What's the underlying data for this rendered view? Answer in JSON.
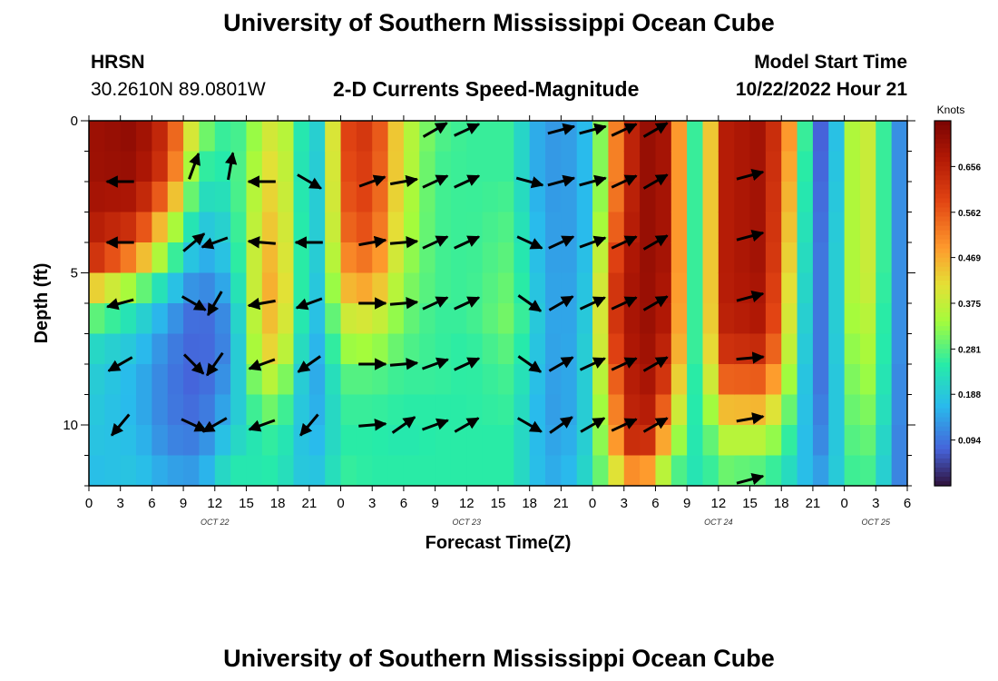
{
  "page": {
    "title": "University of Southern Mississippi Ocean Cube",
    "footer_title": "University of Southern Mississippi Ocean Cube",
    "station_name": "HRSN",
    "station_coords": "30.2610N  89.0801W",
    "chart_title": "2-D Currents Speed-Magnitude",
    "model_start_label": "Model Start Time",
    "model_start_value": "10/22/2022 Hour 21"
  },
  "chart_data": {
    "type": "heatmap",
    "title": "2-D Currents Speed-Magnitude",
    "xlabel": "Forecast Time(Z)",
    "ylabel": "Depth (ft)",
    "colorbar_label": "Knots",
    "colorbar_ticks": [
      "0.656",
      "0.562",
      "0.469",
      "0.375",
      "0.281",
      "0.188",
      "0.094"
    ],
    "colorbar_values": [
      0.656,
      0.562,
      0.469,
      0.375,
      0.281,
      0.188,
      0.094
    ],
    "color_range": [
      0.0,
      0.75
    ],
    "x_tick_labels": [
      "0",
      "3",
      "6",
      "9",
      "12",
      "15",
      "18",
      "21",
      "0",
      "3",
      "6",
      "9",
      "12",
      "15",
      "18",
      "21",
      "0",
      "3",
      "6",
      "9",
      "12",
      "15",
      "18",
      "21",
      "0",
      "3",
      "6"
    ],
    "y_tick_labels": [
      "0",
      "5",
      "10"
    ],
    "y_tick_values": [
      0,
      5,
      10
    ],
    "ylim": [
      0,
      12
    ],
    "xlim_hours": [
      0,
      78
    ],
    "date_labels": [
      {
        "text": "OCT 22",
        "hour": 12
      },
      {
        "text": "OCT 23",
        "hour": 36
      },
      {
        "text": "OCT 24",
        "hour": 60
      },
      {
        "text": "OCT 25",
        "hour": 75
      }
    ],
    "time_hours": [
      0,
      1.5,
      3,
      4.5,
      6,
      7.5,
      9,
      10.5,
      12,
      13.5,
      15,
      16.5,
      18,
      19.5,
      21,
      22.5,
      24,
      25.5,
      27,
      28.5,
      30,
      31.5,
      33,
      34.5,
      36,
      37.5,
      39,
      40.5,
      42,
      43.5,
      45,
      46.5,
      48,
      49.5,
      51,
      52.5,
      54,
      55.5,
      57,
      58.5,
      60,
      61.5,
      63,
      64.5,
      66,
      67.5,
      69,
      70.5,
      72,
      73.5,
      75,
      76.5
    ],
    "depth_ft": [
      0,
      1,
      2,
      3,
      4,
      5,
      6,
      7,
      8,
      9,
      10,
      11
    ],
    "speed_profiles": [
      {
        "hour": 0,
        "values": [
          0.7,
          0.7,
          0.69,
          0.67,
          0.64,
          0.45,
          0.3,
          0.22,
          0.2,
          0.19,
          0.18,
          0.17
        ]
      },
      {
        "hour": 4.5,
        "values": [
          0.72,
          0.71,
          0.68,
          0.62,
          0.5,
          0.32,
          0.22,
          0.18,
          0.16,
          0.16,
          0.17,
          0.18
        ]
      },
      {
        "hour": 7.5,
        "values": [
          0.62,
          0.6,
          0.52,
          0.4,
          0.3,
          0.2,
          0.14,
          0.11,
          0.1,
          0.1,
          0.11,
          0.14
        ]
      },
      {
        "hour": 10.5,
        "values": [
          0.32,
          0.26,
          0.22,
          0.18,
          0.14,
          0.1,
          0.07,
          0.07,
          0.07,
          0.08,
          0.1,
          0.13
        ]
      },
      {
        "hour": 13.5,
        "values": [
          0.24,
          0.24,
          0.23,
          0.21,
          0.19,
          0.16,
          0.13,
          0.12,
          0.14,
          0.16,
          0.2,
          0.24
        ]
      },
      {
        "hour": 16.5,
        "values": [
          0.36,
          0.38,
          0.4,
          0.42,
          0.44,
          0.45,
          0.44,
          0.42,
          0.36,
          0.3,
          0.25,
          0.24
        ]
      },
      {
        "hour": 18,
        "values": [
          0.42,
          0.44,
          0.45,
          0.46,
          0.47,
          0.48,
          0.46,
          0.43,
          0.36,
          0.3,
          0.26,
          0.25
        ]
      },
      {
        "hour": 19.5,
        "values": [
          0.3,
          0.3,
          0.31,
          0.32,
          0.33,
          0.34,
          0.33,
          0.3,
          0.26,
          0.23,
          0.21,
          0.2
        ]
      },
      {
        "hour": 21,
        "values": [
          0.18,
          0.17,
          0.17,
          0.17,
          0.17,
          0.16,
          0.15,
          0.14,
          0.13,
          0.14,
          0.15,
          0.17
        ]
      },
      {
        "hour": 22.5,
        "values": [
          0.22,
          0.22,
          0.22,
          0.22,
          0.22,
          0.21,
          0.2,
          0.18,
          0.17,
          0.17,
          0.18,
          0.19
        ]
      },
      {
        "hour": 24,
        "values": [
          0.58,
          0.57,
          0.56,
          0.54,
          0.5,
          0.45,
          0.38,
          0.33,
          0.28,
          0.26,
          0.25,
          0.26
        ]
      },
      {
        "hour": 27,
        "values": [
          0.62,
          0.61,
          0.6,
          0.58,
          0.54,
          0.48,
          0.4,
          0.34,
          0.28,
          0.26,
          0.25,
          0.25
        ]
      },
      {
        "hour": 30,
        "values": [
          0.38,
          0.38,
          0.37,
          0.36,
          0.34,
          0.32,
          0.3,
          0.28,
          0.26,
          0.25,
          0.24,
          0.25
        ]
      },
      {
        "hour": 33,
        "values": [
          0.28,
          0.27,
          0.27,
          0.27,
          0.27,
          0.27,
          0.26,
          0.26,
          0.26,
          0.25,
          0.25,
          0.25
        ]
      },
      {
        "hour": 36,
        "values": [
          0.26,
          0.26,
          0.26,
          0.26,
          0.26,
          0.26,
          0.26,
          0.25,
          0.25,
          0.25,
          0.25,
          0.25
        ]
      },
      {
        "hour": 40.5,
        "values": [
          0.26,
          0.26,
          0.27,
          0.28,
          0.29,
          0.3,
          0.31,
          0.29,
          0.27,
          0.26,
          0.25,
          0.25
        ]
      },
      {
        "hour": 42,
        "values": [
          0.16,
          0.16,
          0.17,
          0.18,
          0.19,
          0.2,
          0.21,
          0.2,
          0.19,
          0.18,
          0.18,
          0.18
        ]
      },
      {
        "hour": 45,
        "values": [
          0.12,
          0.12,
          0.12,
          0.12,
          0.12,
          0.12,
          0.12,
          0.12,
          0.12,
          0.12,
          0.13,
          0.14
        ]
      },
      {
        "hour": 48,
        "values": [
          0.18,
          0.18,
          0.18,
          0.18,
          0.19,
          0.2,
          0.21,
          0.22,
          0.22,
          0.22,
          0.22,
          0.23
        ]
      },
      {
        "hour": 49.5,
        "values": [
          0.45,
          0.45,
          0.47,
          0.5,
          0.55,
          0.58,
          0.58,
          0.55,
          0.5,
          0.45,
          0.42,
          0.36
        ]
      },
      {
        "hour": 52.5,
        "values": [
          0.72,
          0.72,
          0.72,
          0.72,
          0.72,
          0.72,
          0.72,
          0.72,
          0.72,
          0.72,
          0.7,
          0.55
        ]
      },
      {
        "hour": 55.5,
        "values": [
          0.68,
          0.68,
          0.68,
          0.68,
          0.68,
          0.67,
          0.66,
          0.63,
          0.58,
          0.5,
          0.4,
          0.3
        ]
      },
      {
        "hour": 57,
        "values": [
          0.3,
          0.3,
          0.3,
          0.3,
          0.3,
          0.3,
          0.3,
          0.3,
          0.28,
          0.27,
          0.26,
          0.25
        ]
      },
      {
        "hour": 58.5,
        "values": [
          0.22,
          0.22,
          0.22,
          0.22,
          0.22,
          0.22,
          0.22,
          0.22,
          0.22,
          0.22,
          0.22,
          0.22
        ]
      },
      {
        "hour": 60,
        "values": [
          0.66,
          0.66,
          0.66,
          0.66,
          0.66,
          0.66,
          0.65,
          0.62,
          0.55,
          0.45,
          0.36,
          0.3
        ]
      },
      {
        "hour": 64.5,
        "values": [
          0.7,
          0.7,
          0.7,
          0.7,
          0.7,
          0.69,
          0.68,
          0.64,
          0.56,
          0.46,
          0.36,
          0.28
        ]
      },
      {
        "hour": 67.5,
        "values": [
          0.42,
          0.4,
          0.38,
          0.36,
          0.34,
          0.32,
          0.3,
          0.28,
          0.26,
          0.24,
          0.22,
          0.2
        ]
      },
      {
        "hour": 69,
        "values": [
          0.1,
          0.1,
          0.1,
          0.1,
          0.1,
          0.1,
          0.1,
          0.1,
          0.1,
          0.11,
          0.12,
          0.14
        ]
      },
      {
        "hour": 70.5,
        "values": [
          0.05,
          0.06,
          0.07,
          0.08,
          0.09,
          0.09,
          0.09,
          0.09,
          0.09,
          0.1,
          0.11,
          0.13
        ]
      },
      {
        "hour": 72,
        "values": [
          0.3,
          0.3,
          0.3,
          0.3,
          0.3,
          0.3,
          0.3,
          0.29,
          0.28,
          0.27,
          0.26,
          0.25
        ]
      },
      {
        "hour": 73.5,
        "values": [
          0.4,
          0.4,
          0.4,
          0.4,
          0.4,
          0.4,
          0.38,
          0.36,
          0.34,
          0.32,
          0.3,
          0.28
        ]
      },
      {
        "hour": 75,
        "values": [
          0.36,
          0.36,
          0.36,
          0.36,
          0.36,
          0.35,
          0.34,
          0.33,
          0.32,
          0.3,
          0.28,
          0.26
        ]
      },
      {
        "hour": 76.5,
        "values": [
          0.16,
          0.16,
          0.16,
          0.16,
          0.16,
          0.16,
          0.16,
          0.16,
          0.15,
          0.15,
          0.14,
          0.14
        ]
      },
      {
        "hour": 78,
        "values": [
          0.08,
          0.08,
          0.08,
          0.08,
          0.08,
          0.08,
          0.08,
          0.08,
          0.08,
          0.08,
          0.08,
          0.08
        ]
      }
    ],
    "vector_hours": [
      1.5,
      4.5,
      9,
      12,
      15,
      18,
      21,
      27,
      30,
      33,
      36,
      39,
      42,
      45,
      48,
      51,
      54,
      57,
      60,
      63,
      66,
      69,
      72,
      75,
      78
    ],
    "vector_depths_ft": [
      0,
      2,
      4,
      6,
      8,
      10,
      12
    ],
    "vectors": [
      {
        "hour": 3,
        "depth": 2,
        "angle": 180
      },
      {
        "hour": 3,
        "depth": 4,
        "angle": 180
      },
      {
        "hour": 3,
        "depth": 6,
        "angle": 195
      },
      {
        "hour": 3,
        "depth": 8,
        "angle": 210
      },
      {
        "hour": 3,
        "depth": 10,
        "angle": 230
      },
      {
        "hour": 10,
        "depth": 1.5,
        "angle": 70
      },
      {
        "hour": 10,
        "depth": 4,
        "angle": 40
      },
      {
        "hour": 10,
        "depth": 6,
        "angle": -30
      },
      {
        "hour": 10,
        "depth": 8,
        "angle": -45
      },
      {
        "hour": 10,
        "depth": 10,
        "angle": -25
      },
      {
        "hour": 12,
        "depth": 4,
        "angle": 200
      },
      {
        "hour": 12,
        "depth": 6,
        "angle": 240
      },
      {
        "hour": 12,
        "depth": 8,
        "angle": 235
      },
      {
        "hour": 12,
        "depth": 10,
        "angle": 210
      },
      {
        "hour": 13.5,
        "depth": 1.5,
        "angle": 80
      },
      {
        "hour": 16.5,
        "depth": 2,
        "angle": 180
      },
      {
        "hour": 16.5,
        "depth": 4,
        "angle": 175
      },
      {
        "hour": 16.5,
        "depth": 6,
        "angle": 190
      },
      {
        "hour": 16.5,
        "depth": 8,
        "angle": 200
      },
      {
        "hour": 16.5,
        "depth": 10,
        "angle": 200
      },
      {
        "hour": 21,
        "depth": 2,
        "angle": -30
      },
      {
        "hour": 21,
        "depth": 4,
        "angle": 180
      },
      {
        "hour": 21,
        "depth": 6,
        "angle": 200
      },
      {
        "hour": 21,
        "depth": 8,
        "angle": 215
      },
      {
        "hour": 21,
        "depth": 10,
        "angle": 230
      },
      {
        "hour": 27,
        "depth": 2,
        "angle": 20
      },
      {
        "hour": 27,
        "depth": 4,
        "angle": 10
      },
      {
        "hour": 27,
        "depth": 6,
        "angle": 0
      },
      {
        "hour": 27,
        "depth": 8,
        "angle": 0
      },
      {
        "hour": 27,
        "depth": 10,
        "angle": 5
      },
      {
        "hour": 30,
        "depth": 2,
        "angle": 10
      },
      {
        "hour": 30,
        "depth": 4,
        "angle": 5
      },
      {
        "hour": 30,
        "depth": 6,
        "angle": 5
      },
      {
        "hour": 30,
        "depth": 8,
        "angle": 5
      },
      {
        "hour": 30,
        "depth": 10,
        "angle": 35
      },
      {
        "hour": 33,
        "depth": 0.3,
        "angle": 30
      },
      {
        "hour": 33,
        "depth": 2,
        "angle": 25
      },
      {
        "hour": 33,
        "depth": 4,
        "angle": 25
      },
      {
        "hour": 33,
        "depth": 6,
        "angle": 25
      },
      {
        "hour": 33,
        "depth": 8,
        "angle": 20
      },
      {
        "hour": 33,
        "depth": 10,
        "angle": 20
      },
      {
        "hour": 36,
        "depth": 0.3,
        "angle": 25
      },
      {
        "hour": 36,
        "depth": 2,
        "angle": 25
      },
      {
        "hour": 36,
        "depth": 4,
        "angle": 25
      },
      {
        "hour": 36,
        "depth": 6,
        "angle": 25
      },
      {
        "hour": 36,
        "depth": 8,
        "angle": 25
      },
      {
        "hour": 36,
        "depth": 10,
        "angle": 30
      },
      {
        "hour": 42,
        "depth": 2,
        "angle": -15
      },
      {
        "hour": 42,
        "depth": 4,
        "angle": -25
      },
      {
        "hour": 42,
        "depth": 6,
        "angle": -35
      },
      {
        "hour": 42,
        "depth": 8,
        "angle": -35
      },
      {
        "hour": 42,
        "depth": 10,
        "angle": -30
      },
      {
        "hour": 45,
        "depth": 0.3,
        "angle": 15
      },
      {
        "hour": 45,
        "depth": 2,
        "angle": 15
      },
      {
        "hour": 45,
        "depth": 4,
        "angle": 25
      },
      {
        "hour": 45,
        "depth": 6,
        "angle": 30
      },
      {
        "hour": 45,
        "depth": 8,
        "angle": 30
      },
      {
        "hour": 45,
        "depth": 10,
        "angle": 35
      },
      {
        "hour": 48,
        "depth": 0.3,
        "angle": 15
      },
      {
        "hour": 48,
        "depth": 2,
        "angle": 15
      },
      {
        "hour": 48,
        "depth": 4,
        "angle": 20
      },
      {
        "hour": 48,
        "depth": 6,
        "angle": 25
      },
      {
        "hour": 48,
        "depth": 8,
        "angle": 25
      },
      {
        "hour": 48,
        "depth": 10,
        "angle": 30
      },
      {
        "hour": 51,
        "depth": 0.3,
        "angle": 25
      },
      {
        "hour": 51,
        "depth": 2,
        "angle": 25
      },
      {
        "hour": 51,
        "depth": 4,
        "angle": 25
      },
      {
        "hour": 51,
        "depth": 6,
        "angle": 25
      },
      {
        "hour": 51,
        "depth": 8,
        "angle": 25
      },
      {
        "hour": 51,
        "depth": 10,
        "angle": 25
      },
      {
        "hour": 54,
        "depth": 0.3,
        "angle": 30
      },
      {
        "hour": 54,
        "depth": 2,
        "angle": 30
      },
      {
        "hour": 54,
        "depth": 4,
        "angle": 30
      },
      {
        "hour": 54,
        "depth": 6,
        "angle": 30
      },
      {
        "hour": 54,
        "depth": 8,
        "angle": 30
      },
      {
        "hour": 54,
        "depth": 10,
        "angle": 30
      },
      {
        "hour": 63,
        "depth": 1.8,
        "angle": 15
      },
      {
        "hour": 63,
        "depth": 3.8,
        "angle": 15
      },
      {
        "hour": 63,
        "depth": 5.8,
        "angle": 15
      },
      {
        "hour": 63,
        "depth": 7.8,
        "angle": 5
      },
      {
        "hour": 63,
        "depth": 9.8,
        "angle": 10
      },
      {
        "hour": 63,
        "depth": 11.8,
        "angle": 15
      }
    ]
  }
}
